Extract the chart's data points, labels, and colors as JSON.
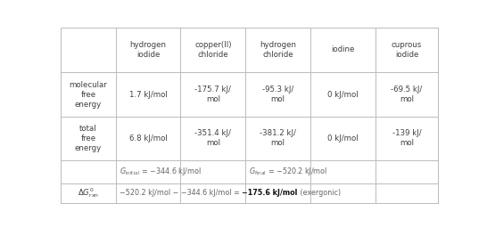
{
  "col_headers": [
    "hydrogen\niodide",
    "copper(II)\nchloride",
    "hydrogen\nchloride",
    "iodine",
    "cuprous\niodide"
  ],
  "mol_free_energy": [
    "1.7 kJ/mol",
    "-175.7 kJ/\nmol",
    "-95.3 kJ/\nmol",
    "0 kJ/mol",
    "-69.5 kJ/\nmol"
  ],
  "total_free_energy": [
    "6.8 kJ/mol",
    "-351.4 kJ/\nmol",
    "-381.2 kJ/\nmol",
    "0 kJ/mol",
    "-139 kJ/\nmol"
  ],
  "bg_color": "#ffffff",
  "line_color": "#bbbbbb",
  "text_color": "#404040",
  "gray_color": "#666666",
  "figw": 5.46,
  "figh": 2.56,
  "dpi": 100
}
